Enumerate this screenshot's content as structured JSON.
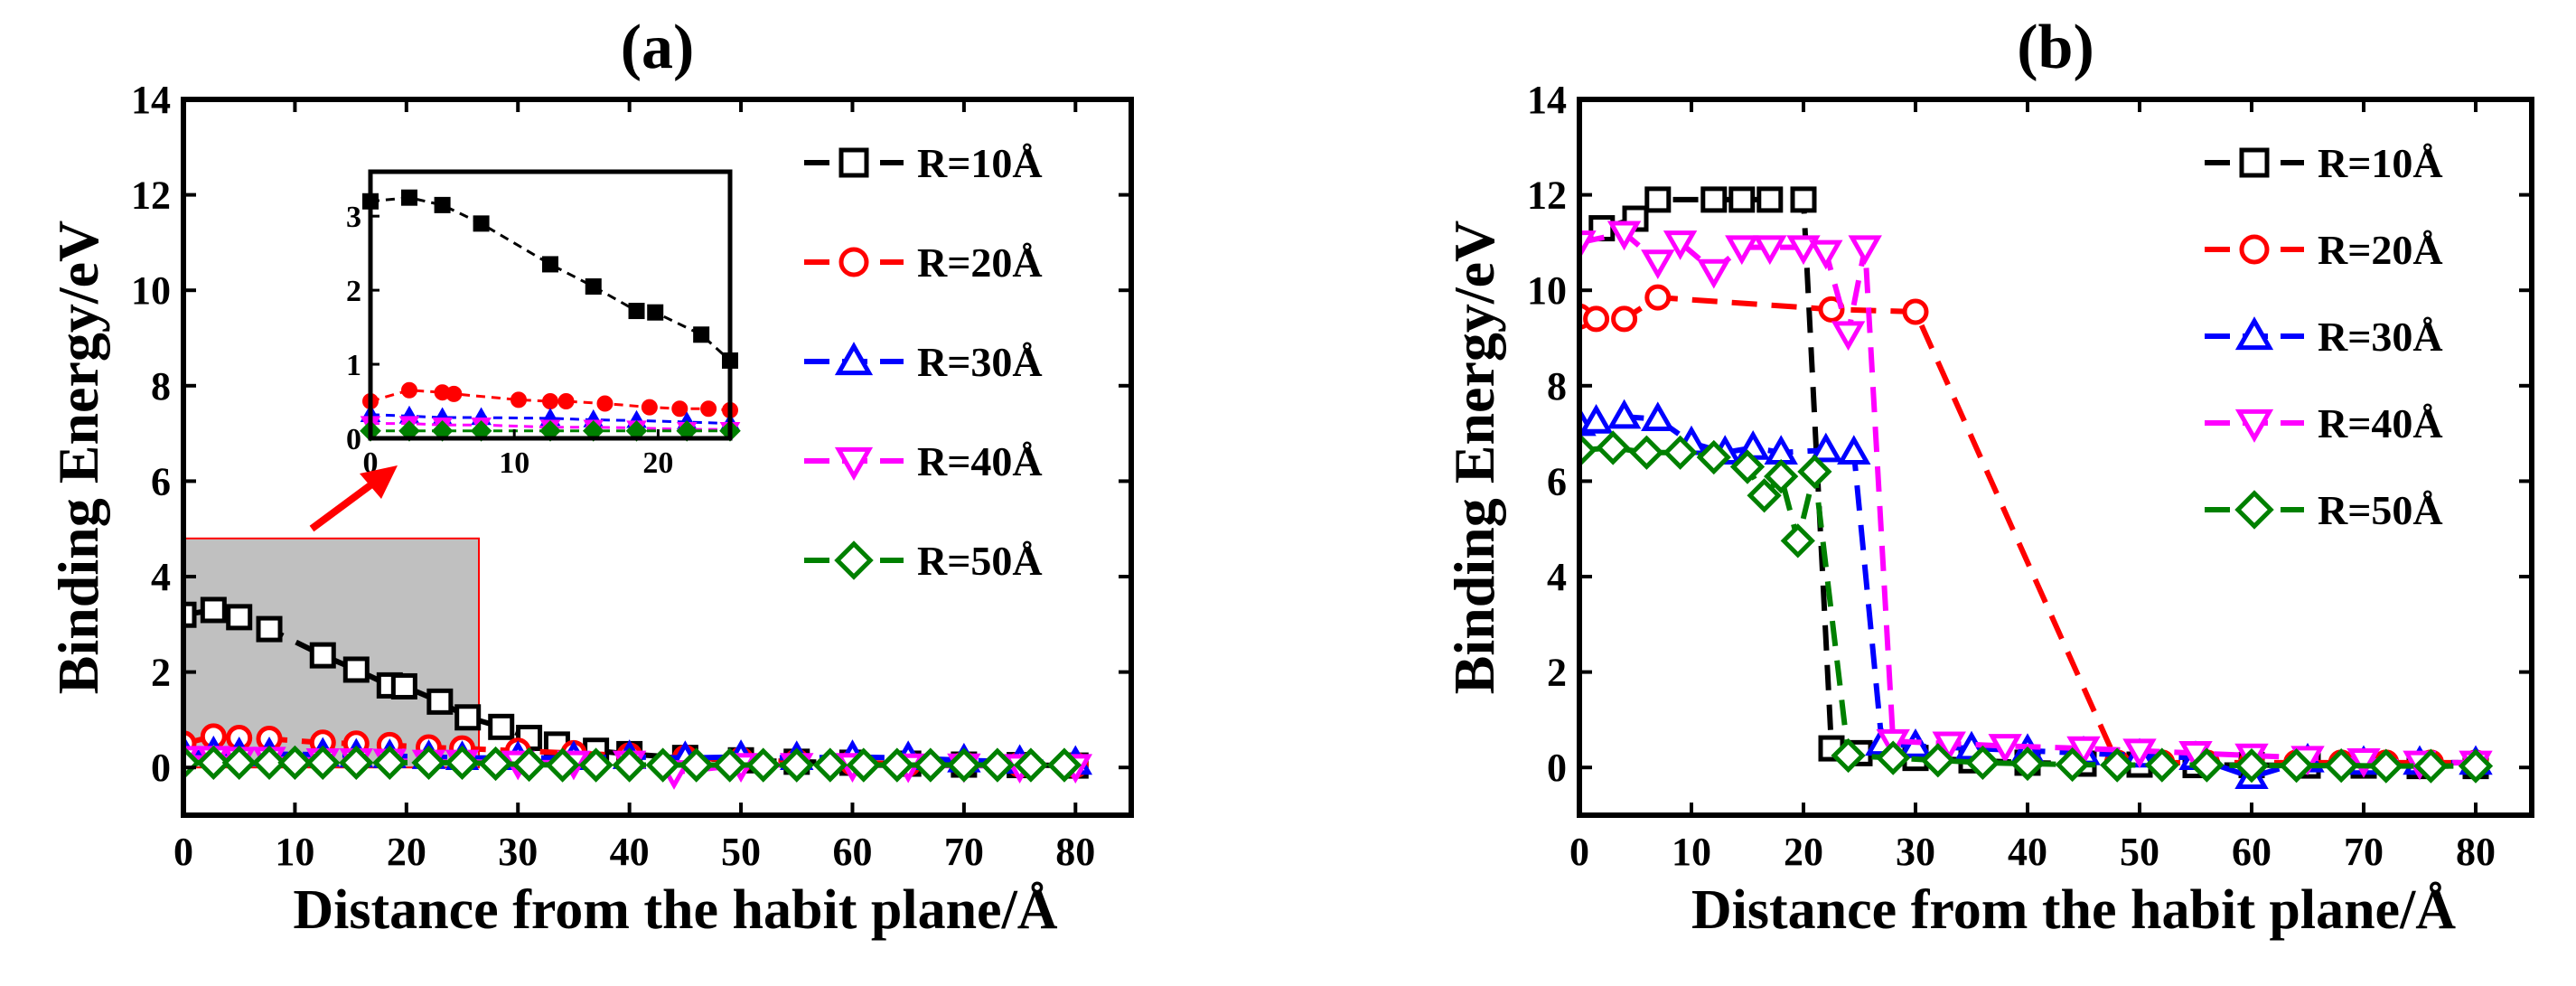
{
  "chart_data": [
    {
      "type": "line",
      "title": "(a)",
      "xlabel": "Distance from the habit plane/Å",
      "ylabel": "Binding Energy/eV",
      "xlim": [
        0,
        85
      ],
      "ylim": [
        -1,
        14
      ],
      "xticks": [
        0,
        10,
        20,
        30,
        40,
        50,
        60,
        70,
        80
      ],
      "yticks": [
        0,
        2,
        4,
        6,
        8,
        10,
        12,
        14
      ],
      "legend_position": "top-right",
      "series": [
        {
          "name": "R=10Å",
          "color": "#000000",
          "marker": "square",
          "x": [
            0,
            2.7,
            5,
            7.7,
            12.5,
            15.5,
            18.5,
            19.8,
            23,
            25.5,
            28.5,
            31,
            33.5,
            37,
            40,
            45,
            50,
            55,
            60,
            65,
            70,
            75,
            80
          ],
          "y": [
            3.2,
            3.3,
            3.15,
            2.9,
            2.35,
            2.05,
            1.72,
            1.7,
            1.38,
            1.05,
            0.85,
            0.62,
            0.48,
            0.35,
            0.28,
            0.2,
            0.15,
            0.12,
            0.1,
            0.08,
            0.06,
            0.05,
            0.04
          ]
        },
        {
          "name": "R=20Å",
          "color": "#ff0000",
          "marker": "circle",
          "x": [
            0,
            2.7,
            5,
            7.7,
            12.5,
            15.5,
            18.5,
            22,
            25,
            30,
            35,
            40,
            45,
            50,
            55,
            60,
            65,
            70,
            75,
            80
          ],
          "y": [
            0.5,
            0.65,
            0.62,
            0.6,
            0.52,
            0.5,
            0.47,
            0.42,
            0.4,
            0.35,
            0.3,
            0.25,
            0.2,
            0.16,
            0.12,
            0.1,
            0.08,
            0.07,
            0.06,
            0.05
          ]
        },
        {
          "name": "R=30Å",
          "color": "#0000ff",
          "marker": "triangle-up",
          "x": [
            0,
            2.7,
            5,
            7.7,
            12.5,
            15.5,
            18.5,
            22,
            25,
            30,
            35,
            40,
            45,
            50,
            55,
            60,
            65,
            70,
            75,
            80
          ],
          "y": [
            0.32,
            0.3,
            0.28,
            0.28,
            0.27,
            0.25,
            0.24,
            0.22,
            0.2,
            0.2,
            0.2,
            0.22,
            0.2,
            0.22,
            0.2,
            0.22,
            0.2,
            0.15,
            0.12,
            0.1
          ]
        },
        {
          "name": "R=40Å",
          "color": "#ff00ff",
          "marker": "triangle-down",
          "x": [
            0,
            2.7,
            5,
            7.7,
            12.5,
            15.5,
            18.5,
            22,
            25,
            30,
            35,
            40,
            44,
            50,
            55,
            60,
            65,
            70,
            75,
            80
          ],
          "y": [
            0.2,
            0.2,
            0.18,
            0.18,
            0.15,
            0.15,
            0.14,
            0.12,
            0.12,
            0.1,
            0.1,
            0.1,
            -0.1,
            0.05,
            0.05,
            0.05,
            0.04,
            0.04,
            0.03,
            0.03
          ]
        },
        {
          "name": "R=50Å",
          "color": "#008000",
          "marker": "diamond",
          "x": [
            0,
            2.7,
            5,
            7.7,
            10,
            12.5,
            15.5,
            18.5,
            22,
            25,
            28,
            31,
            34,
            37,
            40,
            43,
            46,
            49,
            52,
            55,
            58,
            61,
            64,
            67,
            70,
            73,
            76,
            79
          ],
          "y": [
            0.1,
            0.1,
            0.1,
            0.1,
            0.1,
            0.1,
            0.1,
            0.1,
            0.1,
            0.1,
            0.08,
            0.06,
            0.05,
            0.05,
            0.05,
            0.05,
            0.05,
            0.05,
            0.05,
            0.05,
            0.05,
            0.05,
            0.05,
            0.05,
            0.05,
            0.05,
            0.05,
            0.05
          ]
        }
      ],
      "highlight_region": {
        "x": [
          0,
          26.5
        ],
        "y": [
          0,
          4.8
        ]
      },
      "inset": {
        "xlim": [
          0,
          25
        ],
        "ylim": [
          0,
          3.6
        ],
        "xticks": [
          0,
          10,
          20
        ],
        "yticks": [
          0,
          1,
          2,
          3
        ],
        "series": [
          {
            "name": "R=10Å",
            "color": "#000000",
            "marker": "filled-square",
            "x": [
              0,
              2.7,
              5,
              7.7,
              12.5,
              15.5,
              18.5,
              19.8,
              23,
              25
            ],
            "y": [
              3.2,
              3.25,
              3.15,
              2.9,
              2.35,
              2.05,
              1.72,
              1.7,
              1.4,
              1.05
            ]
          },
          {
            "name": "R=20Å",
            "color": "#ff0000",
            "marker": "filled-circle",
            "x": [
              0,
              2.7,
              5,
              5.8,
              10.3,
              12.5,
              13.6,
              16.3,
              19.4,
              21.5,
              23.5,
              25
            ],
            "y": [
              0.5,
              0.65,
              0.62,
              0.6,
              0.52,
              0.5,
              0.5,
              0.47,
              0.42,
              0.4,
              0.4,
              0.38
            ]
          },
          {
            "name": "R=30Å",
            "color": "#0000ff",
            "marker": "filled-triangle-up",
            "x": [
              0,
              2.7,
              5,
              7.7,
              12.5,
              15.5,
              18.5,
              22,
              25
            ],
            "y": [
              0.32,
              0.3,
              0.28,
              0.28,
              0.27,
              0.25,
              0.24,
              0.22,
              0.2
            ]
          },
          {
            "name": "R=40Å",
            "color": "#ff00ff",
            "marker": "filled-triangle-down",
            "x": [
              0,
              2.7,
              5,
              7.7,
              12.5,
              15.5,
              18.5,
              22,
              25
            ],
            "y": [
              0.2,
              0.2,
              0.18,
              0.18,
              0.15,
              0.15,
              0.14,
              0.12,
              0.12
            ]
          },
          {
            "name": "R=50Å",
            "color": "#008000",
            "marker": "filled-diamond",
            "x": [
              0,
              2.7,
              5,
              7.7,
              12.5,
              15.5,
              18.5,
              22,
              25
            ],
            "y": [
              0.1,
              0.1,
              0.1,
              0.1,
              0.1,
              0.1,
              0.1,
              0.1,
              0.1
            ]
          }
        ]
      }
    },
    {
      "type": "line",
      "title": "(b)",
      "xlabel": "Distance from the habit plane/Å",
      "ylabel": "Binding Energy/eV",
      "xlim": [
        0,
        85
      ],
      "ylim": [
        -1,
        14
      ],
      "xticks": [
        0,
        10,
        20,
        30,
        40,
        50,
        60,
        70,
        80
      ],
      "yticks": [
        0,
        2,
        4,
        6,
        8,
        10,
        12,
        14
      ],
      "legend_position": "top-right",
      "series": [
        {
          "name": "R=10Å",
          "color": "#000000",
          "marker": "square",
          "x": [
            2,
            5,
            7,
            12,
            14.5,
            17,
            20,
            22.5,
            25,
            30,
            35,
            40,
            45,
            50,
            55,
            60,
            65,
            70,
            75,
            80
          ],
          "y": [
            11.3,
            11.5,
            11.9,
            11.9,
            11.9,
            11.9,
            11.9,
            0.4,
            0.3,
            0.2,
            0.15,
            0.1,
            0.08,
            0.06,
            0.05,
            0.05,
            0.04,
            0.04,
            0.03,
            0.03
          ]
        },
        {
          "name": "R=20Å",
          "color": "#ff0000",
          "marker": "circle",
          "x": [
            0,
            1.5,
            4,
            7,
            22.5,
            30,
            48,
            52,
            56,
            60,
            64,
            68,
            72,
            76,
            80
          ],
          "y": [
            9.45,
            9.4,
            9.4,
            9.85,
            9.6,
            9.55,
            0.1,
            0.1,
            0.1,
            0.1,
            0.1,
            0.1,
            0.1,
            0.1,
            0.1
          ]
        },
        {
          "name": "R=30Å",
          "color": "#0000ff",
          "marker": "triangle-up",
          "x": [
            0,
            1.5,
            4,
            7,
            10,
            13,
            15.5,
            18,
            22,
            24.5,
            27,
            30,
            35,
            40,
            45,
            50,
            55,
            60,
            65,
            70,
            75,
            80
          ],
          "y": [
            7.2,
            7.25,
            7.35,
            7.3,
            6.8,
            6.6,
            6.7,
            6.6,
            6.65,
            6.6,
            0.5,
            0.45,
            0.4,
            0.35,
            0.3,
            0.25,
            0.2,
            -0.2,
            0.15,
            0.1,
            0.1,
            0.1
          ]
        },
        {
          "name": "R=40Å",
          "color": "#ff00ff",
          "marker": "triangle-down",
          "x": [
            0,
            4,
            7,
            9,
            12,
            14.5,
            17,
            20,
            22,
            24,
            25.5,
            28,
            33,
            38,
            45,
            50,
            55,
            60,
            65,
            70,
            75,
            80
          ],
          "y": [
            11.0,
            11.2,
            10.6,
            11.0,
            10.4,
            10.9,
            10.9,
            10.9,
            10.8,
            9.1,
            10.9,
            0.55,
            0.5,
            0.45,
            0.4,
            0.35,
            0.3,
            0.25,
            0.2,
            0.15,
            0.1,
            0.1
          ]
        },
        {
          "name": "R=50Å",
          "color": "#008000",
          "marker": "diamond",
          "x": [
            0,
            3,
            6,
            9,
            12,
            15,
            16.5,
            18,
            19.5,
            21,
            24,
            28,
            32,
            36,
            40,
            44,
            48,
            52,
            56,
            60,
            64,
            68,
            72,
            76,
            80
          ],
          "y": [
            6.65,
            6.7,
            6.6,
            6.6,
            6.5,
            6.3,
            5.7,
            6.1,
            4.75,
            6.2,
            0.25,
            0.2,
            0.15,
            0.1,
            0.08,
            0.06,
            0.05,
            0.05,
            0.05,
            0.04,
            0.04,
            0.04,
            0.03,
            0.03,
            0.03
          ]
        }
      ]
    }
  ]
}
